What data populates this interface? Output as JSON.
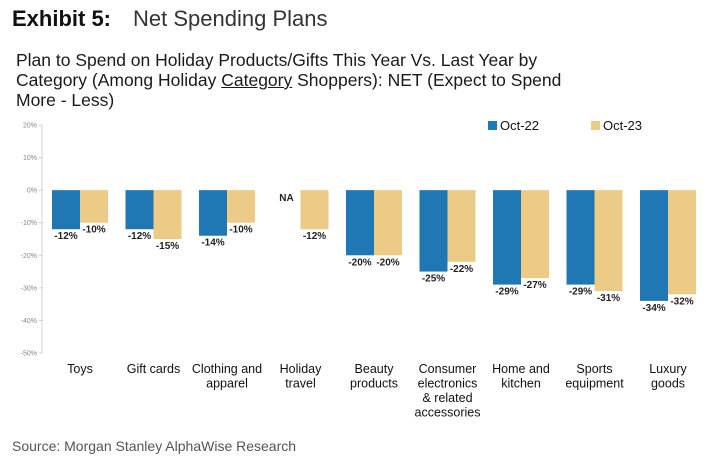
{
  "header": {
    "exhibit_label": "Exhibit 5:",
    "exhibit_name": "Net Spending Plans",
    "subtitle_before": "Plan to Spend on Holiday Products/Gifts This Year Vs. Last Year by Category (Among Holiday ",
    "subtitle_underlined": "Category",
    "subtitle_after": " Shoppers): NET (Expect to Spend More - Less)"
  },
  "source": "Source: Morgan Stanley AlphaWise Research",
  "chart_data": {
    "type": "bar",
    "title": "Plan to Spend on Holiday Products/Gifts This Year Vs. Last Year by Category (Among Holiday Category Shoppers): NET (Expect to Spend More - Less)",
    "xlabel": "",
    "ylabel": "",
    "ylim": [
      -50,
      20
    ],
    "yticks": [
      20,
      10,
      0,
      -10,
      -20,
      -30,
      -40,
      -50
    ],
    "ytick_labels": [
      "20%",
      "10%",
      "0%",
      "-10%",
      "-20%",
      "-30%",
      "-40%",
      "-50%"
    ],
    "legend_position": "top-right",
    "categories": [
      [
        "Toys"
      ],
      [
        "Gift cards"
      ],
      [
        "Clothing and",
        "apparel"
      ],
      [
        "Holiday",
        "travel"
      ],
      [
        "Beauty",
        "products"
      ],
      [
        "Consumer",
        "electronics",
        "& related",
        "accessories"
      ],
      [
        "Home and",
        "kitchen"
      ],
      [
        "Sports",
        "equipment"
      ],
      [
        "Luxury",
        "goods"
      ]
    ],
    "series": [
      {
        "name": "Oct-22",
        "color": "#1f78b4",
        "values": [
          -12,
          -12,
          -14,
          null,
          -20,
          -25,
          -29,
          -29,
          -34
        ],
        "labels": [
          "-12%",
          "-12%",
          "-14%",
          "NA",
          "-20%",
          "-25%",
          "-29%",
          "-29%",
          "-34%"
        ]
      },
      {
        "name": "Oct-23",
        "color": "#ebcb85",
        "values": [
          -10,
          -15,
          -10,
          -12,
          -20,
          -22,
          -27,
          -31,
          -32
        ],
        "labels": [
          "-10%",
          "-15%",
          "-10%",
          "-12%",
          "-20%",
          "-22%",
          "-27%",
          "-31%",
          "-32%"
        ]
      }
    ]
  }
}
